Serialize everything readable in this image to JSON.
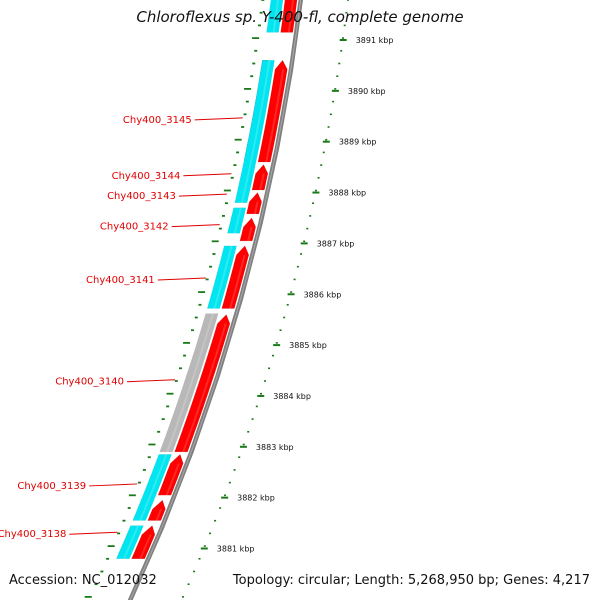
{
  "title": "Chloroflexus sp. Y-400-fl, complete genome",
  "footer": {
    "accession": "Accession: NC_012032",
    "topology": "Topology: circular; Length: 5,268,950 bp; Genes: 4,217"
  },
  "colors": {
    "forward_cds": "#ff0000",
    "reverse_cds": "#00e5f0",
    "reverse_dark": "#3a3aa0",
    "pseudo": "#b8b8b8",
    "backbone": "#808080",
    "tick": "#1a7a1a",
    "label": "#e00000"
  },
  "genes": [
    {
      "label": "Chy400_3145",
      "kbp": 3889.45
    },
    {
      "label": "Chy400_3144",
      "kbp": 3888.35
    },
    {
      "label": "Chy400_3143",
      "kbp": 3887.95
    },
    {
      "label": "Chy400_3142",
      "kbp": 3887.35
    },
    {
      "label": "Chy400_3141",
      "kbp": 3886.3
    },
    {
      "label": "Chy400_3140",
      "kbp": 3884.3
    },
    {
      "label": "Chy400_3139",
      "kbp": 3882.25
    },
    {
      "label": "Chy400_3138",
      "kbp": 3881.3
    }
  ],
  "scale_labels": [
    "3891 kbp",
    "3890 kbp",
    "3889 kbp",
    "3888 kbp",
    "3887 kbp",
    "3886 kbp",
    "3885 kbp",
    "3884 kbp",
    "3883 kbp",
    "3882 kbp",
    "3881 kbp"
  ],
  "reverse_features": [
    {
      "start": 3892.2,
      "end": 3891.15,
      "kind": "cds"
    },
    {
      "start": 3890.6,
      "end": 3888.62,
      "kind": "dark"
    },
    {
      "start": 3890.6,
      "end": 3887.8,
      "kind": "cds"
    },
    {
      "start": 3887.7,
      "end": 3887.2,
      "kind": "cds"
    },
    {
      "start": 3886.95,
      "end": 3885.72,
      "kind": "cds"
    },
    {
      "start": 3885.62,
      "end": 3882.9,
      "kind": "pseudo"
    },
    {
      "start": 3882.85,
      "end": 3881.55,
      "kind": "cds"
    },
    {
      "start": 3881.45,
      "end": 3880.8,
      "kind": "cds"
    }
  ],
  "forward_features": [
    {
      "start": 3892.2,
      "end": 3891.15
    },
    {
      "start": 3890.6,
      "end": 3888.6
    },
    {
      "start": 3888.55,
      "end": 3888.05
    },
    {
      "start": 3888.0,
      "end": 3887.58
    },
    {
      "start": 3887.5,
      "end": 3887.05
    },
    {
      "start": 3886.95,
      "end": 3885.72
    },
    {
      "start": 3885.6,
      "end": 3882.9
    },
    {
      "start": 3882.85,
      "end": 3882.05
    },
    {
      "start": 3881.95,
      "end": 3881.55
    },
    {
      "start": 3881.45,
      "end": 3880.8
    }
  ]
}
